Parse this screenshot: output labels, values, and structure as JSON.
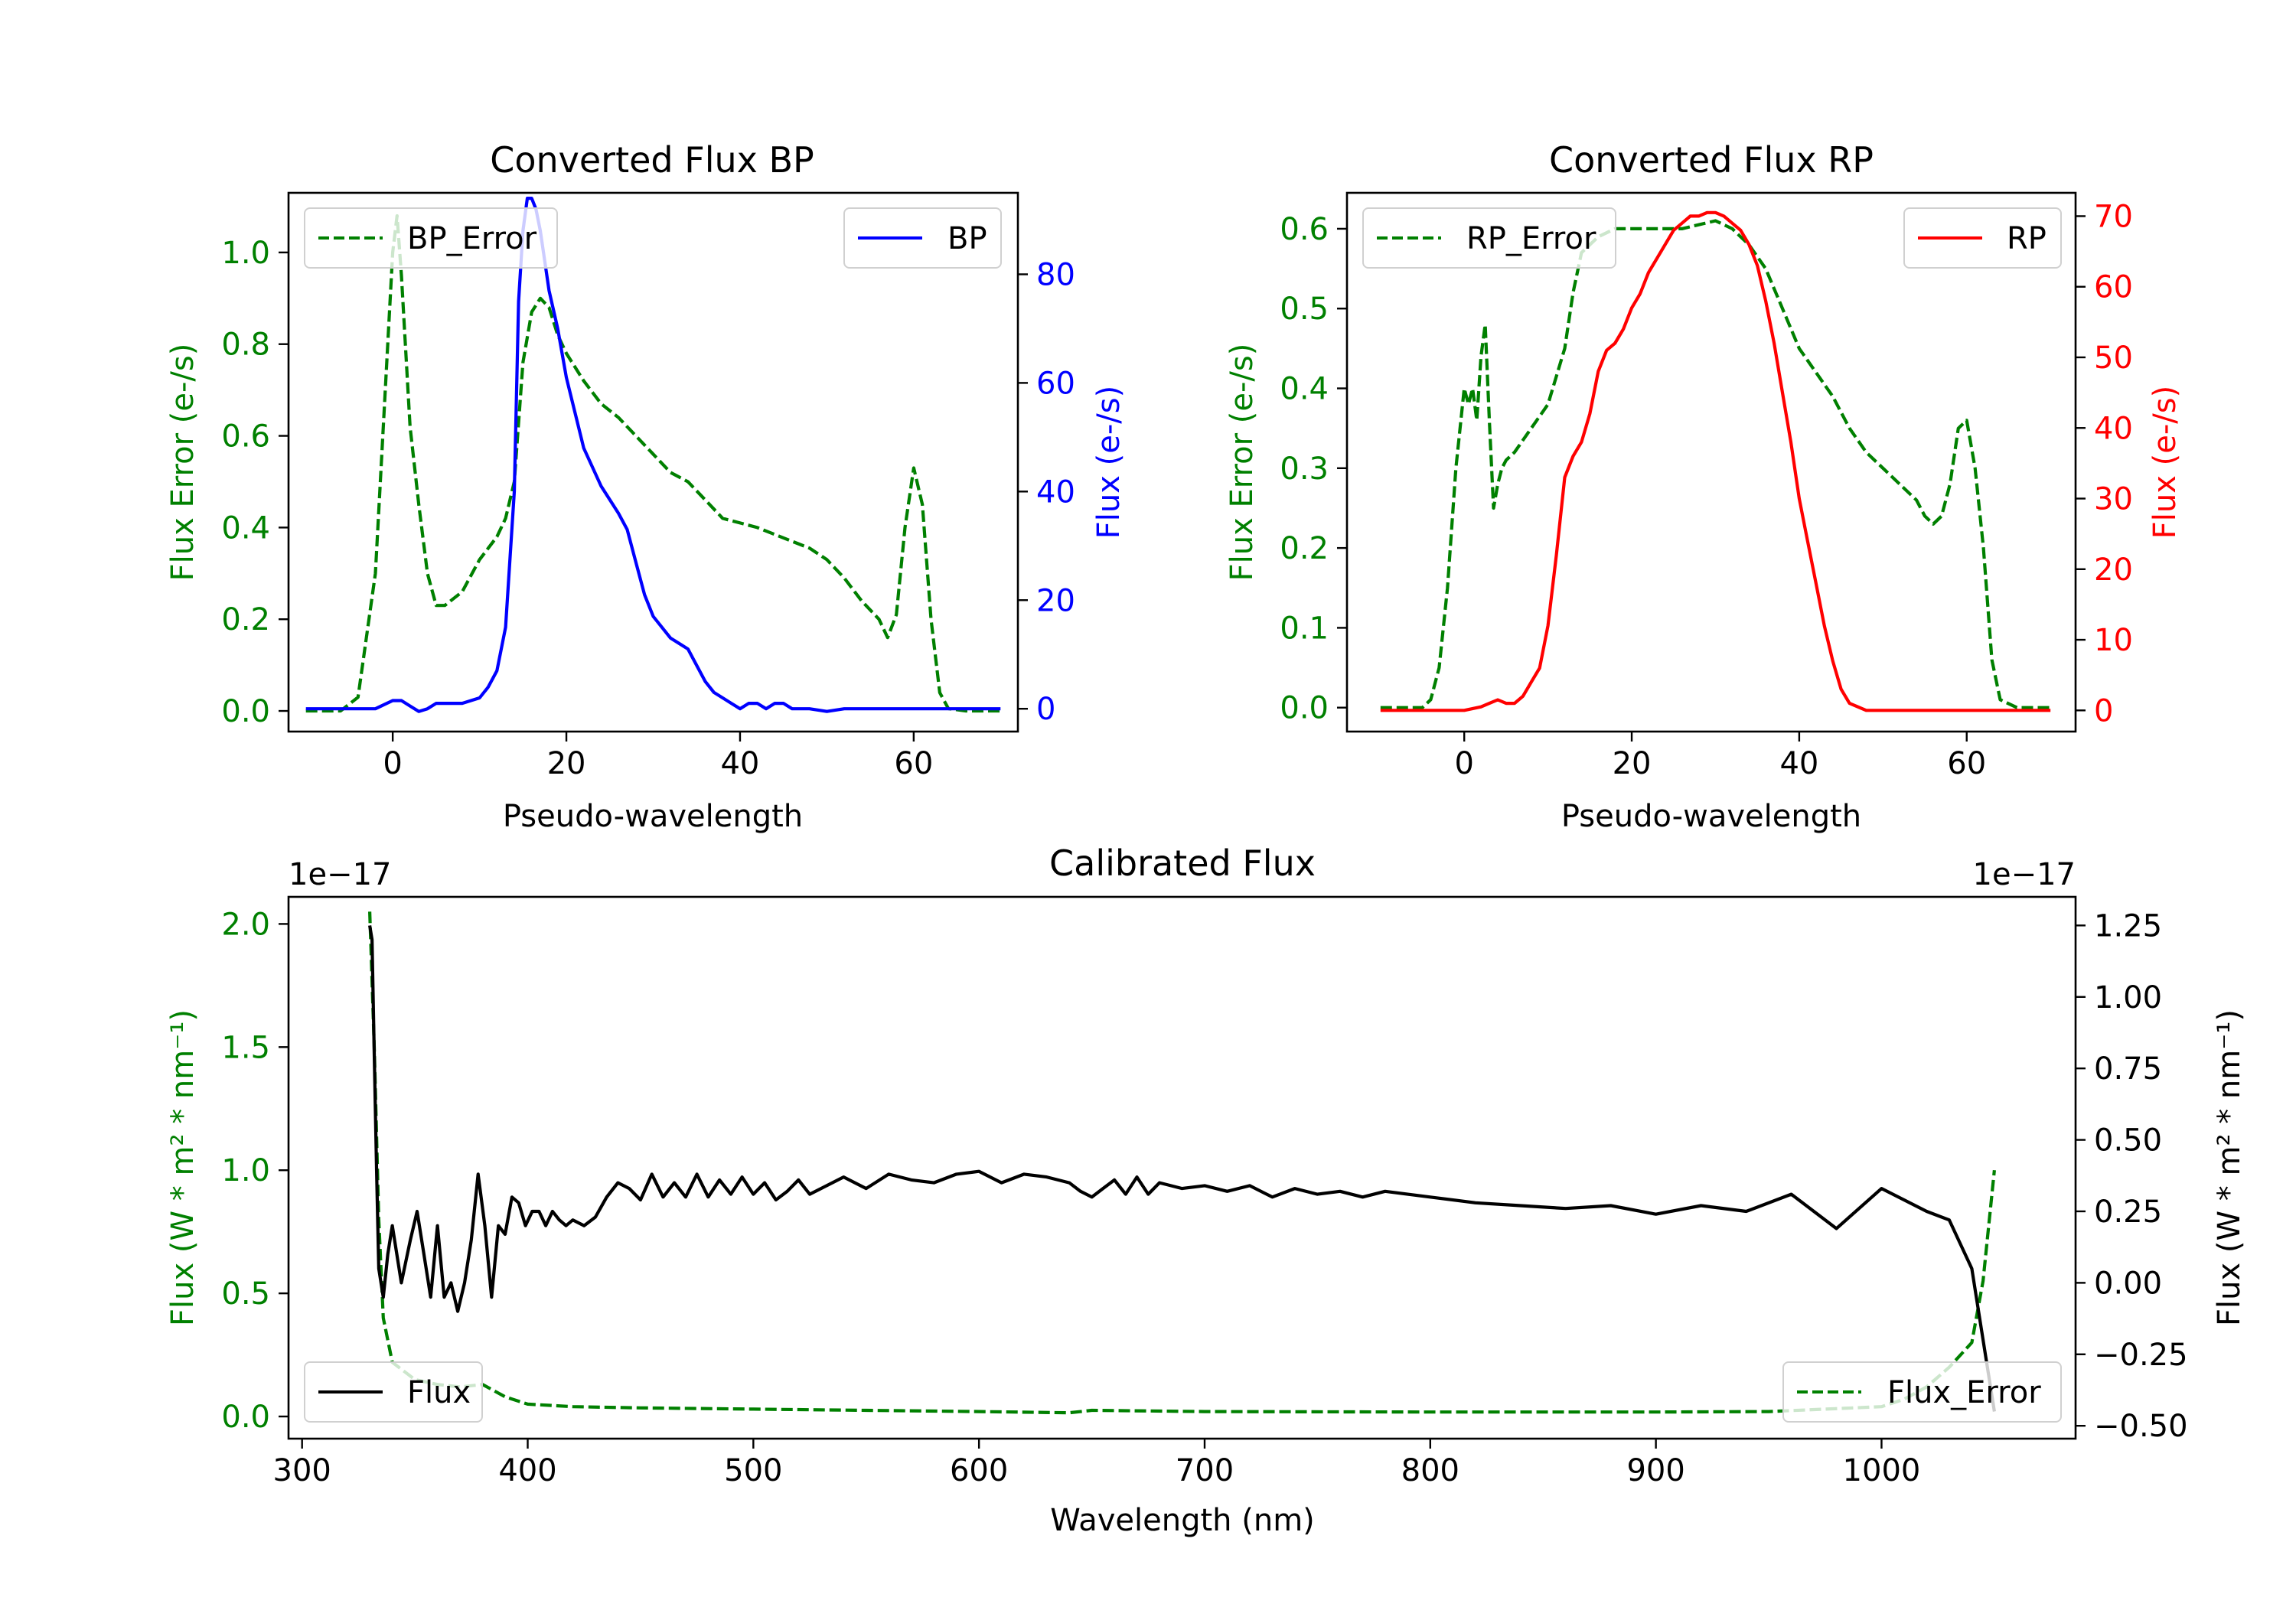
{
  "colors": {
    "green": "#008000",
    "blue": "#0000ff",
    "red": "#ff0000",
    "black": "#000000"
  },
  "chart_data": [
    {
      "id": "bp",
      "type": "line",
      "title": "Converted Flux BP",
      "xlabel": "Pseudo-wavelength",
      "ylabel_left": "Flux Error (e-/s)",
      "ylabel_right": "Flux (e-/s)",
      "xlim": [
        -12,
        72
      ],
      "ylim_left": [
        -0.045,
        1.13
      ],
      "ylim_right": [
        -4.2,
        95
      ],
      "xticks": [
        0,
        20,
        40,
        60
      ],
      "yticks_left": [
        0.0,
        0.2,
        0.4,
        0.6,
        0.8,
        1.0
      ],
      "yticks_right": [
        0,
        20,
        40,
        60,
        80
      ],
      "legend_left": {
        "label": "BP_Error",
        "placement": "upper left"
      },
      "legend_right": {
        "label": "BP",
        "placement": "upper right"
      },
      "series": [
        {
          "name": "BP_Error",
          "axis": "left",
          "color": "#008000",
          "dash": true,
          "x": [
            -10,
            -6,
            -4,
            -2,
            -1,
            0,
            0.5,
            1,
            2,
            3,
            4,
            5,
            6,
            8,
            10,
            12,
            13,
            14,
            15,
            16,
            17,
            18,
            19,
            20,
            22,
            24,
            26,
            28,
            30,
            32,
            34,
            36,
            38,
            40,
            42,
            44,
            46,
            48,
            50,
            52,
            54,
            56,
            57,
            58,
            59,
            60,
            61,
            62,
            63,
            64,
            66,
            68,
            70
          ],
          "y": [
            0,
            0,
            0.03,
            0.3,
            0.65,
            1.0,
            1.08,
            0.95,
            0.62,
            0.45,
            0.3,
            0.23,
            0.23,
            0.26,
            0.33,
            0.38,
            0.42,
            0.5,
            0.76,
            0.87,
            0.9,
            0.88,
            0.82,
            0.78,
            0.72,
            0.67,
            0.64,
            0.6,
            0.56,
            0.52,
            0.5,
            0.46,
            0.42,
            0.41,
            0.4,
            0.385,
            0.37,
            0.355,
            0.33,
            0.29,
            0.24,
            0.2,
            0.16,
            0.21,
            0.4,
            0.53,
            0.45,
            0.2,
            0.04,
            0.005,
            0,
            0,
            0
          ]
        },
        {
          "name": "BP",
          "axis": "right",
          "color": "#0000ff",
          "dash": false,
          "x": [
            -10,
            -6,
            -4,
            -2,
            0,
            1,
            2,
            3,
            4,
            5,
            6,
            8,
            10,
            11,
            12,
            13,
            14,
            14.5,
            15,
            15.5,
            16,
            16.5,
            17,
            18,
            19,
            20,
            22,
            24,
            26,
            27,
            28,
            29,
            30,
            32,
            34,
            35,
            36,
            37,
            38,
            39,
            40,
            41,
            42,
            43,
            44,
            45,
            46,
            48,
            50,
            52,
            54,
            56,
            58,
            60,
            62,
            64,
            66,
            68,
            70
          ],
          "y": [
            0,
            0,
            0,
            0,
            1.5,
            1.5,
            0.5,
            -0.5,
            0,
            1,
            1,
            1,
            2,
            4,
            7,
            15,
            40,
            75,
            88,
            94,
            94,
            92,
            88,
            77,
            70,
            61,
            48,
            41,
            36,
            33,
            27,
            21,
            17,
            13,
            11,
            8,
            5,
            3,
            2,
            1,
            0,
            1,
            1,
            0,
            1,
            1,
            0,
            0,
            -0.5,
            0,
            0,
            0,
            0,
            0,
            0,
            0,
            0,
            0,
            0
          ]
        }
      ]
    },
    {
      "id": "rp",
      "type": "line",
      "title": "Converted Flux RP",
      "xlabel": "Pseudo-wavelength",
      "ylabel_left": "Flux Error (e-/s)",
      "ylabel_right": "Flux (e-/s)",
      "xlim": [
        -14,
        73
      ],
      "ylim_left": [
        -0.03,
        0.645
      ],
      "ylim_right": [
        -3.0,
        73.3
      ],
      "xticks": [
        0,
        20,
        40,
        60
      ],
      "yticks_left": [
        0.0,
        0.1,
        0.2,
        0.3,
        0.4,
        0.5,
        0.6
      ],
      "yticks_right": [
        0,
        10,
        20,
        30,
        40,
        50,
        60,
        70
      ],
      "legend_left": {
        "label": "RP_Error",
        "placement": "upper left"
      },
      "legend_right": {
        "label": "RP",
        "placement": "upper right"
      },
      "series": [
        {
          "name": "RP_Error",
          "axis": "left",
          "color": "#008000",
          "dash": true,
          "x": [
            -10,
            -5,
            -4,
            -3,
            -2,
            -1,
            0,
            0.5,
            1,
            1.5,
            2,
            2.5,
            3,
            3.5,
            4,
            4.5,
            5,
            6,
            8,
            10,
            12,
            13,
            14,
            15,
            16,
            18,
            20,
            22,
            24,
            26,
            28,
            30,
            32,
            34,
            36,
            38,
            40,
            42,
            44,
            46,
            48,
            50,
            52,
            54,
            55,
            56,
            57,
            58,
            59,
            60,
            61,
            62,
            63,
            64,
            66,
            68,
            70
          ],
          "y": [
            0,
            0,
            0.01,
            0.05,
            0.15,
            0.3,
            0.4,
            0.38,
            0.4,
            0.36,
            0.44,
            0.48,
            0.36,
            0.25,
            0.28,
            0.3,
            0.31,
            0.32,
            0.35,
            0.38,
            0.45,
            0.52,
            0.57,
            0.58,
            0.59,
            0.6,
            0.6,
            0.6,
            0.6,
            0.6,
            0.605,
            0.61,
            0.6,
            0.58,
            0.55,
            0.5,
            0.45,
            0.42,
            0.39,
            0.35,
            0.32,
            0.3,
            0.28,
            0.26,
            0.24,
            0.23,
            0.24,
            0.28,
            0.35,
            0.36,
            0.3,
            0.2,
            0.06,
            0.01,
            0,
            0,
            0
          ]
        },
        {
          "name": "RP",
          "axis": "right",
          "color": "#ff0000",
          "dash": false,
          "x": [
            -10,
            -4,
            -2,
            0,
            2,
            3,
            4,
            5,
            6,
            7,
            8,
            9,
            10,
            11,
            12,
            13,
            14,
            15,
            16,
            17,
            18,
            19,
            20,
            21,
            22,
            23,
            24,
            25,
            26,
            27,
            28,
            29,
            30,
            31,
            32,
            33,
            34,
            35,
            36,
            37,
            38,
            39,
            40,
            41,
            42,
            43,
            44,
            45,
            46,
            47,
            48,
            49,
            50,
            52,
            54,
            56,
            60,
            65,
            70
          ],
          "y": [
            0,
            0,
            0,
            0,
            0.5,
            1,
            1.5,
            1,
            1,
            2,
            4,
            6,
            12,
            22,
            33,
            36,
            38,
            42,
            48,
            51,
            52,
            54,
            57,
            59,
            62,
            64,
            66,
            68,
            69,
            70,
            70,
            70.5,
            70.5,
            70,
            69,
            68,
            66,
            63,
            58,
            52,
            45,
            38,
            30,
            24,
            18,
            12,
            7,
            3,
            1,
            0.5,
            0,
            0,
            0,
            0,
            0,
            0,
            0,
            0,
            0
          ]
        }
      ]
    },
    {
      "id": "calibrated",
      "type": "line",
      "title": "Calibrated Flux",
      "xlabel": "Wavelength (nm)",
      "ylabel_left": "Flux (W * m² * nm⁻¹)",
      "ylabel_right": "Flux (W * m² * nm⁻¹)",
      "offset_left": "1e−17",
      "offset_right": "1e−17",
      "xlim": [
        294,
        1086
      ],
      "ylim_left": [
        -0.09,
        2.11
      ],
      "ylim_right": [
        -0.545,
        1.35
      ],
      "xticks": [
        300,
        400,
        500,
        600,
        700,
        800,
        900,
        1000
      ],
      "yticks_left": [
        0.0,
        0.5,
        1.0,
        1.5,
        2.0
      ],
      "yticks_left_labels": [
        "0.0",
        "0.5",
        "1.0",
        "1.5",
        "2.0"
      ],
      "yticks_right": [
        -0.5,
        -0.25,
        0.0,
        0.25,
        0.5,
        0.75,
        1.0,
        1.25
      ],
      "yticks_right_labels": [
        "−0.50",
        "−0.25",
        "0.00",
        "0.25",
        "0.50",
        "0.75",
        "1.00",
        "1.25"
      ],
      "legend_left": {
        "label": "Flux",
        "placement": "lower left"
      },
      "legend_right": {
        "label": "Flux_Error",
        "placement": "lower right"
      },
      "series": [
        {
          "name": "Flux_Error",
          "axis": "left",
          "color": "#008000",
          "dash": true,
          "x": [
            330,
            332,
            334,
            336,
            340,
            350,
            360,
            370,
            380,
            390,
            400,
            420,
            450,
            500,
            550,
            600,
            640,
            650,
            700,
            800,
            900,
            950,
            1000,
            1010,
            1020,
            1030,
            1040,
            1045,
            1050
          ],
          "y": [
            2.05,
            1.5,
            0.8,
            0.4,
            0.22,
            0.15,
            0.13,
            0.12,
            0.13,
            0.08,
            0.05,
            0.04,
            0.035,
            0.03,
            0.025,
            0.02,
            0.015,
            0.025,
            0.02,
            0.018,
            0.018,
            0.02,
            0.04,
            0.07,
            0.12,
            0.2,
            0.3,
            0.55,
            1.0
          ]
        },
        {
          "name": "Flux",
          "axis": "right",
          "color": "#000000",
          "dash": false,
          "x": [
            330,
            331,
            332,
            333,
            334,
            336,
            338,
            340,
            342,
            344,
            348,
            351,
            354,
            357,
            360,
            363,
            366,
            369,
            372,
            375,
            378,
            381,
            384,
            387,
            390,
            393,
            396,
            399,
            402,
            405,
            408,
            411,
            414,
            417,
            420,
            425,
            430,
            435,
            440,
            445,
            450,
            455,
            460,
            465,
            470,
            475,
            480,
            485,
            490,
            495,
            500,
            505,
            510,
            515,
            520,
            525,
            530,
            540,
            550,
            560,
            570,
            580,
            590,
            600,
            610,
            620,
            630,
            640,
            645,
            650,
            655,
            660,
            665,
            670,
            675,
            680,
            690,
            700,
            710,
            720,
            730,
            740,
            750,
            760,
            770,
            780,
            790,
            800,
            820,
            840,
            860,
            880,
            900,
            920,
            940,
            960,
            980,
            1000,
            1020,
            1030,
            1040,
            1050
          ],
          "y": [
            1.25,
            1.2,
            0.8,
            0.4,
            0.05,
            -0.05,
            0.1,
            0.2,
            0.1,
            0.0,
            0.15,
            0.25,
            0.1,
            -0.05,
            0.2,
            -0.05,
            0.0,
            -0.1,
            0.0,
            0.15,
            0.38,
            0.2,
            -0.05,
            0.2,
            0.17,
            0.3,
            0.28,
            0.2,
            0.25,
            0.25,
            0.2,
            0.25,
            0.22,
            0.2,
            0.22,
            0.2,
            0.23,
            0.3,
            0.35,
            0.33,
            0.29,
            0.38,
            0.3,
            0.35,
            0.3,
            0.38,
            0.3,
            0.36,
            0.31,
            0.37,
            0.31,
            0.35,
            0.29,
            0.32,
            0.36,
            0.31,
            0.33,
            0.37,
            0.33,
            0.38,
            0.36,
            0.35,
            0.38,
            0.39,
            0.35,
            0.38,
            0.37,
            0.35,
            0.32,
            0.3,
            0.33,
            0.36,
            0.31,
            0.37,
            0.31,
            0.35,
            0.33,
            0.34,
            0.32,
            0.34,
            0.3,
            0.33,
            0.31,
            0.32,
            0.3,
            0.32,
            0.31,
            0.3,
            0.28,
            0.27,
            0.26,
            0.27,
            0.24,
            0.27,
            0.25,
            0.31,
            0.19,
            0.33,
            0.25,
            0.22,
            0.05,
            -0.45
          ]
        }
      ]
    }
  ]
}
